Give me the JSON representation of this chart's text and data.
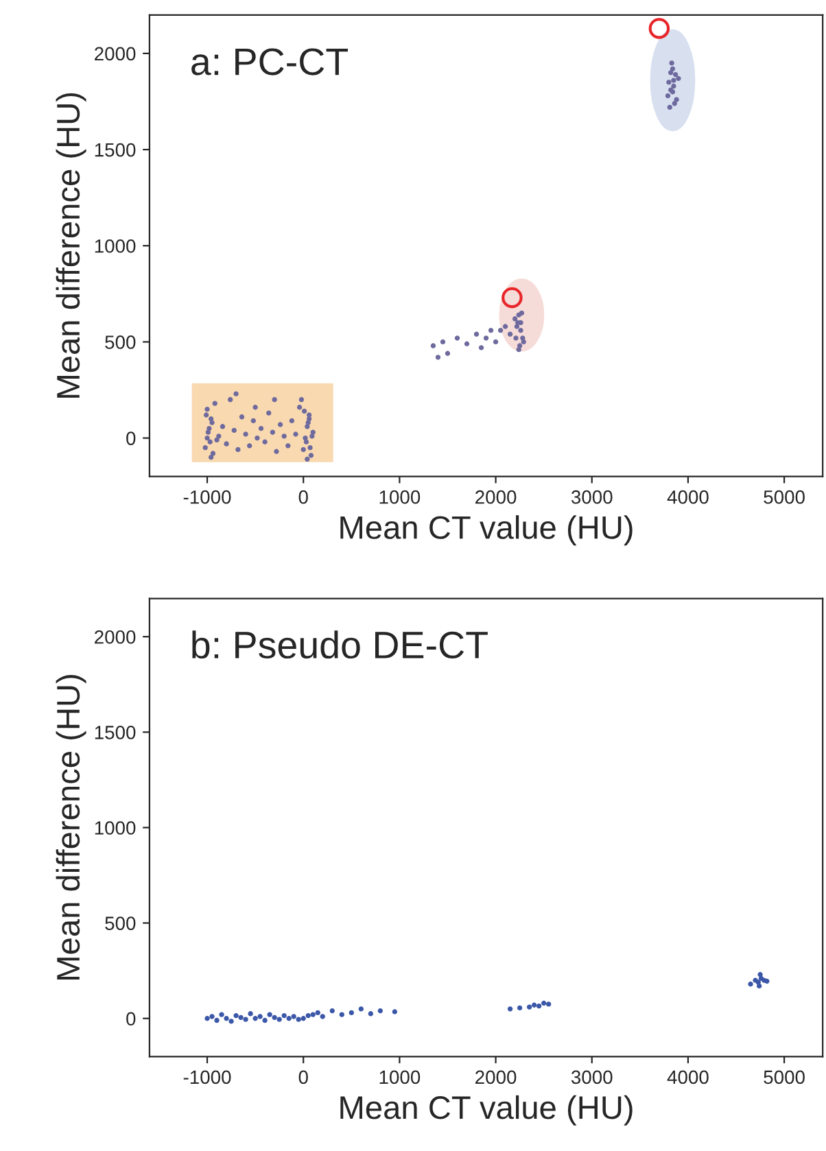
{
  "chart_data": [
    {
      "type": "scatter",
      "title": "a: PC-CT",
      "xlabel": "Mean CT value (HU)",
      "ylabel": "Mean difference (HU)",
      "xlim": [
        -1600,
        5400
      ],
      "ylim": [
        -200,
        2200
      ],
      "xticks": [
        -1000,
        0,
        1000,
        2000,
        3000,
        4000,
        5000
      ],
      "yticks": [
        0,
        500,
        1000,
        1500,
        2000
      ],
      "grid": false,
      "legend": false,
      "marker": "circle",
      "series": [
        {
          "color": "#6e6a9e",
          "x": [
            -1020,
            -1000,
            -980,
            -960,
            -940,
            -1010,
            -990,
            -970,
            -950,
            -1000,
            -960,
            -920,
            -880,
            -840,
            -800,
            -760,
            -720,
            -680,
            -640,
            -600,
            -560,
            -520,
            -480,
            -440,
            -400,
            -360,
            -320,
            -280,
            -240,
            -200,
            -160,
            -120,
            -80,
            -40,
            0,
            20,
            40,
            60,
            80,
            100,
            10,
            30,
            50,
            70,
            90,
            -20,
            40,
            60,
            -900,
            -700,
            -500,
            -300
          ],
          "values": [
            -50,
            0,
            50,
            100,
            -80,
            120,
            30,
            -20,
            80,
            150,
            -100,
            180,
            10,
            60,
            -30,
            200,
            40,
            -60,
            110,
            20,
            -40,
            90,
            0,
            50,
            -20,
            130,
            30,
            -70,
            70,
            10,
            -40,
            90,
            20,
            160,
            -60,
            0,
            60,
            120,
            -90,
            30,
            140,
            -20,
            80,
            -50,
            10,
            200,
            -110,
            100,
            -10,
            230,
            160,
            200
          ]
        },
        {
          "color": "#6e6a9e",
          "x": [
            1350,
            1400,
            1450,
            1500,
            1600,
            1700,
            1800,
            1850,
            1900,
            1950,
            2000,
            2050,
            2100,
            2150,
            2200,
            2220,
            2240,
            2260,
            2280,
            2250,
            2230,
            2270,
            2210,
            2290,
            2240,
            2260
          ],
          "values": [
            480,
            420,
            500,
            440,
            520,
            490,
            540,
            470,
            520,
            560,
            500,
            560,
            580,
            540,
            620,
            580,
            640,
            560,
            520,
            480,
            600,
            650,
            520,
            500,
            460,
            600
          ]
        },
        {
          "color": "#6e6a9e",
          "x": [
            3800,
            3820,
            3840,
            3900,
            3880,
            3810,
            3830,
            3850,
            3870,
            3790,
            3840,
            3860,
            3820,
            3850
          ],
          "values": [
            1850,
            1900,
            1800,
            1870,
            1760,
            1720,
            1950,
            1830,
            1890,
            1780,
            1920,
            1740,
            1810,
            1860
          ]
        },
        {
          "color": "#e8262a",
          "marker": "open circle",
          "x": [
            2170,
            3700
          ],
          "values": [
            730,
            2130
          ]
        }
      ]
    },
    {
      "type": "scatter",
      "title": "b: Pseudo DE-CT",
      "xlabel": "Mean CT value (HU)",
      "ylabel": "Mean difference (HU)",
      "xlim": [
        -1600,
        5400
      ],
      "ylim": [
        -200,
        2200
      ],
      "xticks": [
        -1000,
        0,
        1000,
        2000,
        3000,
        4000,
        5000
      ],
      "yticks": [
        0,
        500,
        1000,
        1500,
        2000
      ],
      "grid": false,
      "legend": false,
      "marker": "circle",
      "series": [
        {
          "color": "#3b57a8",
          "x": [
            -1000,
            -950,
            -900,
            -850,
            -800,
            -750,
            -700,
            -650,
            -600,
            -550,
            -500,
            -450,
            -400,
            -350,
            -300,
            -250,
            -200,
            -150,
            -100,
            -50,
            0,
            50,
            100,
            150,
            200,
            300,
            400,
            500,
            600,
            700,
            800,
            950,
            2150,
            2250,
            2350,
            2400,
            2450,
            2500,
            2550,
            4650,
            4700,
            4730,
            4760,
            4790,
            4820,
            4750,
            4740
          ],
          "values": [
            0,
            10,
            -10,
            20,
            0,
            -15,
            15,
            5,
            -5,
            25,
            0,
            10,
            -10,
            20,
            5,
            -5,
            15,
            0,
            10,
            -5,
            0,
            15,
            20,
            30,
            10,
            40,
            20,
            30,
            50,
            25,
            40,
            35,
            50,
            55,
            60,
            70,
            65,
            80,
            75,
            180,
            200,
            190,
            210,
            200,
            195,
            230,
            170
          ]
        }
      ]
    }
  ]
}
